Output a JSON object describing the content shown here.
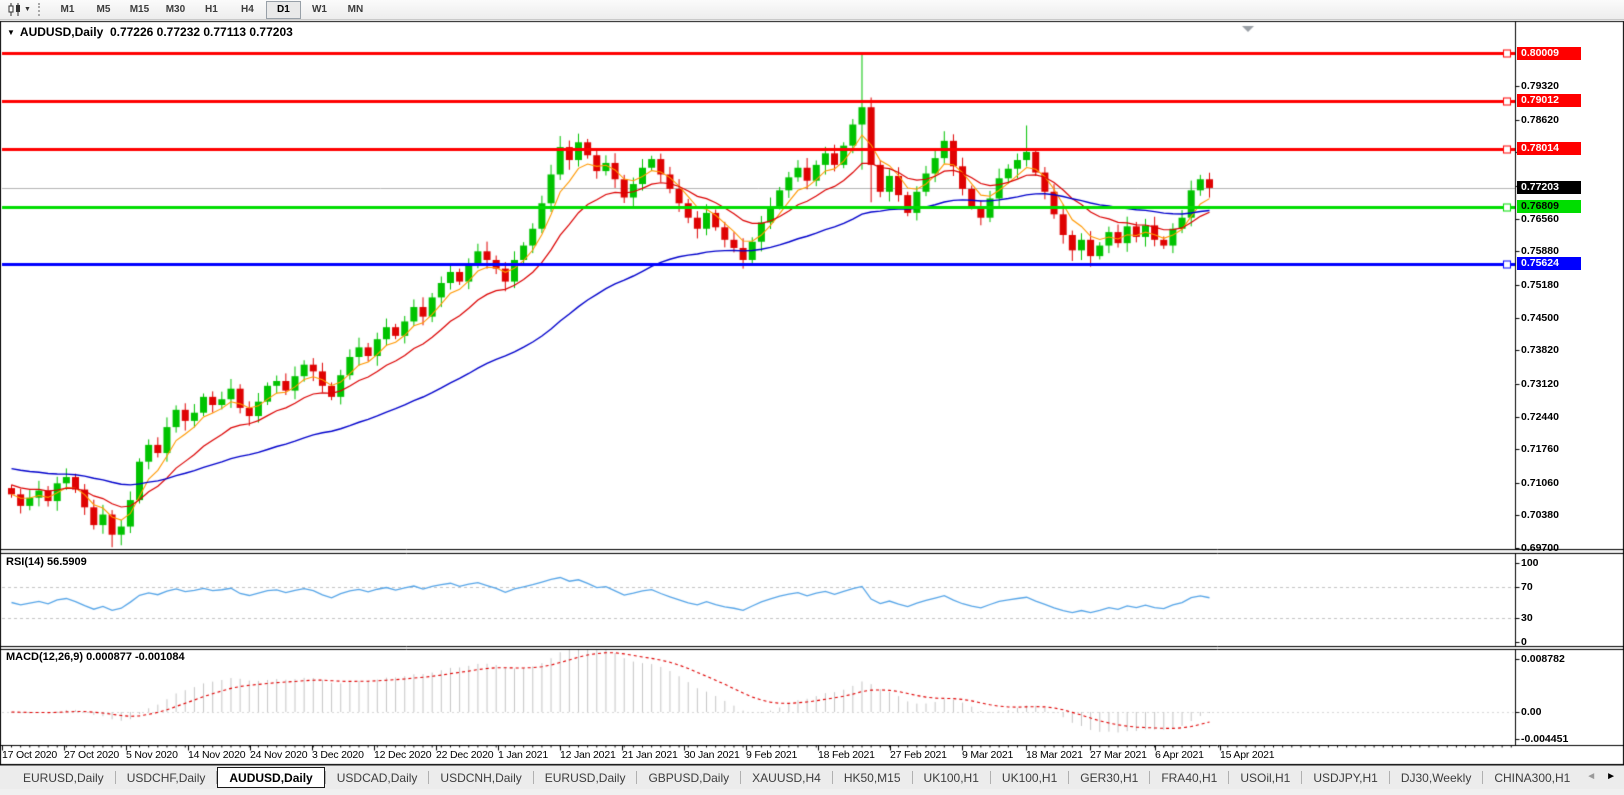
{
  "toolbar": {
    "chart_type_tooltip": "Candlesticks",
    "timeframes": [
      "M1",
      "M5",
      "M15",
      "M30",
      "H1",
      "H4",
      "D1",
      "W1",
      "MN"
    ],
    "active_timeframe": "D1"
  },
  "chart": {
    "title_symbol": "AUDUSD,Daily",
    "ohlc_text": "0.77226 0.77232 0.77113 0.77203",
    "collapse_glyph": "▼",
    "rsi_label": "RSI(14) 56.5909",
    "macd_label": "MACD(12,26,9) 0.000877 -0.001084"
  },
  "chart_data": {
    "type": "candlestick",
    "symbol": "AUDUSD",
    "period": "Daily",
    "ohlc_display": {
      "open": 0.77226,
      "high": 0.77232,
      "low": 0.77113,
      "close": 0.77203
    },
    "price_axis": {
      "ticks": [
        "0.79320",
        "0.78620",
        "0.77940",
        "0.77240",
        "0.76560",
        "0.75880",
        "0.75180",
        "0.74500",
        "0.73820",
        "0.73120",
        "0.72440",
        "0.71760",
        "0.71060",
        "0.70380",
        "0.69700"
      ]
    },
    "hlines": [
      {
        "value": 0.80009,
        "label": "0.80009",
        "color": "#FF0000",
        "text": "#FFFFFF",
        "role": "resistance"
      },
      {
        "value": 0.79012,
        "label": "0.79012",
        "color": "#FF0000",
        "text": "#FFFFFF",
        "role": "resistance"
      },
      {
        "value": 0.78014,
        "label": "0.78014",
        "color": "#FF0000",
        "text": "#FFFFFF",
        "role": "resistance"
      },
      {
        "value": 0.76809,
        "label": "0.76809",
        "color": "#00DD00",
        "text": "#000000",
        "role": "support"
      },
      {
        "value": 0.75624,
        "label": "0.75624",
        "color": "#0000FF",
        "text": "#FFFFFF",
        "role": "support"
      }
    ],
    "current_price": {
      "value": 0.77203,
      "label": "0.77203",
      "box_color": "#000000",
      "text_color": "#FFFFFF",
      "line_color": "#B4B4B4"
    },
    "dates": [
      "17 Oct 2020",
      "27 Oct 2020",
      "5 Nov 2020",
      "14 Nov 2020",
      "24 Nov 2020",
      "3 Dec 2020",
      "12 Dec 2020",
      "22 Dec 2020",
      "1 Jan 2021",
      "12 Jan 2021",
      "21 Jan 2021",
      "30 Jan 2021",
      "9 Feb 2021",
      "18 Feb 2021",
      "27 Feb 2021",
      "9 Mar 2021",
      "18 Mar 2021",
      "27 Mar 2021",
      "6 Apr 2021",
      "15 Apr 2021"
    ],
    "date_x": [
      2,
      64,
      126,
      188,
      250,
      312,
      374,
      436,
      498,
      560,
      622,
      684,
      746,
      818,
      890,
      962,
      1026,
      1090,
      1155,
      1220
    ],
    "first_open": 0.7095,
    "closes": [
      0.7082,
      0.7058,
      0.7075,
      0.709,
      0.7068,
      0.7105,
      0.7118,
      0.7092,
      0.7055,
      0.7018,
      0.704,
      0.6998,
      0.7015,
      0.707,
      0.715,
      0.7185,
      0.7168,
      0.7222,
      0.7258,
      0.7235,
      0.7252,
      0.7285,
      0.7268,
      0.728,
      0.7302,
      0.7262,
      0.7245,
      0.7275,
      0.7308,
      0.7318,
      0.7298,
      0.7328,
      0.7352,
      0.7338,
      0.7308,
      0.7285,
      0.733,
      0.7368,
      0.7388,
      0.737,
      0.7405,
      0.743,
      0.7412,
      0.7442,
      0.7472,
      0.7452,
      0.7492,
      0.7522,
      0.7545,
      0.7525,
      0.7562,
      0.7588,
      0.757,
      0.7552,
      0.7525,
      0.757,
      0.76,
      0.7635,
      0.7688,
      0.7748,
      0.7805,
      0.7778,
      0.7815,
      0.7788,
      0.7755,
      0.7772,
      0.7738,
      0.77,
      0.7728,
      0.7762,
      0.778,
      0.7748,
      0.7718,
      0.7688,
      0.7658,
      0.7635,
      0.7668,
      0.7638,
      0.7612,
      0.7595,
      0.757,
      0.7608,
      0.7648,
      0.7682,
      0.7715,
      0.7742,
      0.7762,
      0.7735,
      0.7768,
      0.7792,
      0.7768,
      0.7808,
      0.7852,
      0.7888,
      0.7768,
      0.7712,
      0.7745,
      0.7705,
      0.7668,
      0.7712,
      0.775,
      0.7782,
      0.7818,
      0.7765,
      0.7718,
      0.7682,
      0.7658,
      0.7698,
      0.774,
      0.776,
      0.7778,
      0.7795,
      0.7752,
      0.7712,
      0.7665,
      0.7622,
      0.759,
      0.7612,
      0.7578,
      0.76,
      0.7628,
      0.7605,
      0.764,
      0.7618,
      0.7642,
      0.7612,
      0.76,
      0.7635,
      0.7658,
      0.7715,
      0.7738,
      0.772
    ],
    "wick_overrides": {
      "11": {
        "l": 0.6972
      },
      "12": {
        "l": 0.6976
      },
      "60": {
        "h": 0.7828
      },
      "93": {
        "h": 0.80009,
        "l": 0.7758
      },
      "94": {
        "l": 0.769
      },
      "102": {
        "h": 0.7838
      },
      "111": {
        "h": 0.785
      },
      "116": {
        "l": 0.7568
      },
      "118": {
        "l": 0.7556
      }
    },
    "moving_averages": [
      {
        "name": "ma-fast",
        "period": 5,
        "color": "#FF9900"
      },
      {
        "name": "ma-mid",
        "period": 13,
        "color": "#DC0000"
      },
      {
        "name": "ma-slow",
        "period": 45,
        "color": "#0000CC"
      }
    ],
    "rsi": {
      "name": "RSI",
      "period": 14,
      "value_text": "56.5909",
      "levels": [
        70,
        30
      ],
      "axis_ticks": [
        "100",
        "70",
        "30",
        "0"
      ],
      "color": "#56A5E8"
    },
    "macd": {
      "name": "MACD",
      "fast": 12,
      "slow": 26,
      "signal": 9,
      "value_main": "0.000877",
      "value_signal": "-0.001084",
      "axis_ticks": [
        "0.008782",
        "0.00",
        "-0.004451"
      ],
      "range_max": 0.008782,
      "range_min": -0.004451,
      "hist_color": "#C6C6C6",
      "signal_color": "#E00000"
    },
    "colors": {
      "candle_up": "#00C300",
      "candle_down": "#DF0202",
      "grid_dash": "#C4C4C4",
      "pane_border": "#000000",
      "shift_marker": "#9aa0a6"
    }
  },
  "tabs": {
    "items": [
      "EURUSD,Daily",
      "USDCHF,Daily",
      "AUDUSD,Daily",
      "USDCAD,Daily",
      "USDCNH,Daily",
      "EURUSD,Daily",
      "GBPUSD,Daily",
      "XAUUSD,H4",
      "HK50,M15",
      "UK100,H1",
      "UK100,H1",
      "GER30,H1",
      "FRA40,H1",
      "USOil,H1",
      "USDJPY,H1",
      "DJ30,Weekly",
      "CHINA300,H1"
    ],
    "active_index": 2,
    "overflow_partial": "U",
    "scroll_left_glyph": "◄",
    "scroll_right_glyph": "►"
  }
}
